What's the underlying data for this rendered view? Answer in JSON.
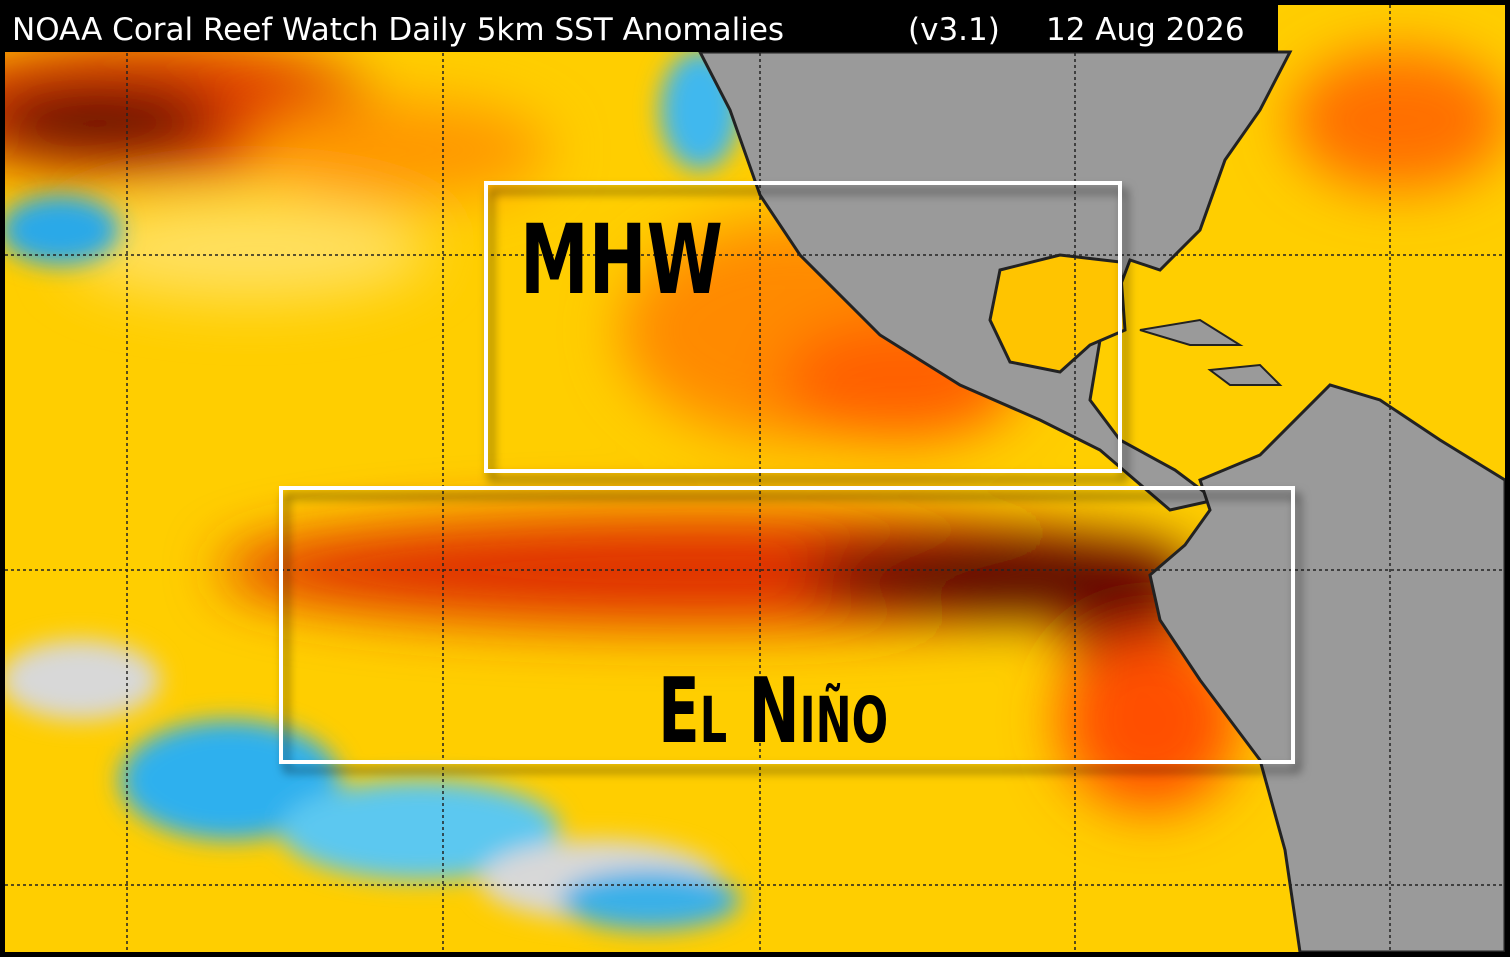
{
  "header": {
    "title": "NOAA Coral Reef Watch Daily 5km SST Anomalies",
    "version": "(v3.1)",
    "date": "12 Aug 2026"
  },
  "regions": [
    {
      "label": "MHW"
    },
    {
      "label": "El Niño"
    }
  ]
}
